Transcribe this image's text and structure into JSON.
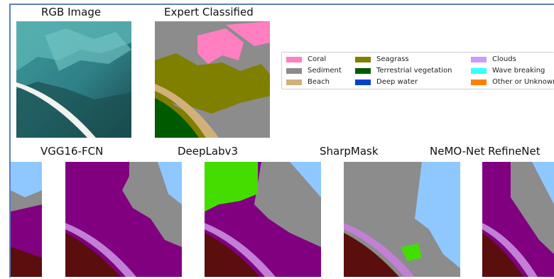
{
  "titles": {
    "rgb": "RGB Image",
    "expert": "Expert Classified",
    "vgg": "VGG16-FCN",
    "deeplab": "DeepLabv3",
    "sharpmask": "SharpMask",
    "nemo": "NeMO-Net RefineNet"
  },
  "legend": [
    {
      "label": "Coral",
      "color": "#ff7fc0"
    },
    {
      "label": "Sediment",
      "color": "#8c8c8c"
    },
    {
      "label": "Beach",
      "color": "#d2b07a"
    },
    {
      "label": "Seagrass",
      "color": "#7f7f00"
    },
    {
      "label": "Terrestrial vegetation",
      "color": "#005a00"
    },
    {
      "label": "Deep water",
      "color": "#0044cc"
    },
    {
      "label": "Clouds",
      "color": "#cc99ff"
    },
    {
      "label": "Wave breaking",
      "color": "#33ffff"
    },
    {
      "label": "Other or Unknown",
      "color": "#ff7f00"
    }
  ],
  "colors": {
    "sediment": "#8c8c8c",
    "purple": "#800080",
    "dark_red": "#5a0e0e",
    "light_blue": "#8ec8ff",
    "lime": "#44dd00",
    "beach": "#d2b07a",
    "seagrass": "#7f7f00",
    "terrestrial": "#005a00",
    "coral": "#ff7fc0",
    "lavender": "#c27fd6",
    "sea_light": "#5fb8b8",
    "sea_dark": "#1c5a5c"
  }
}
